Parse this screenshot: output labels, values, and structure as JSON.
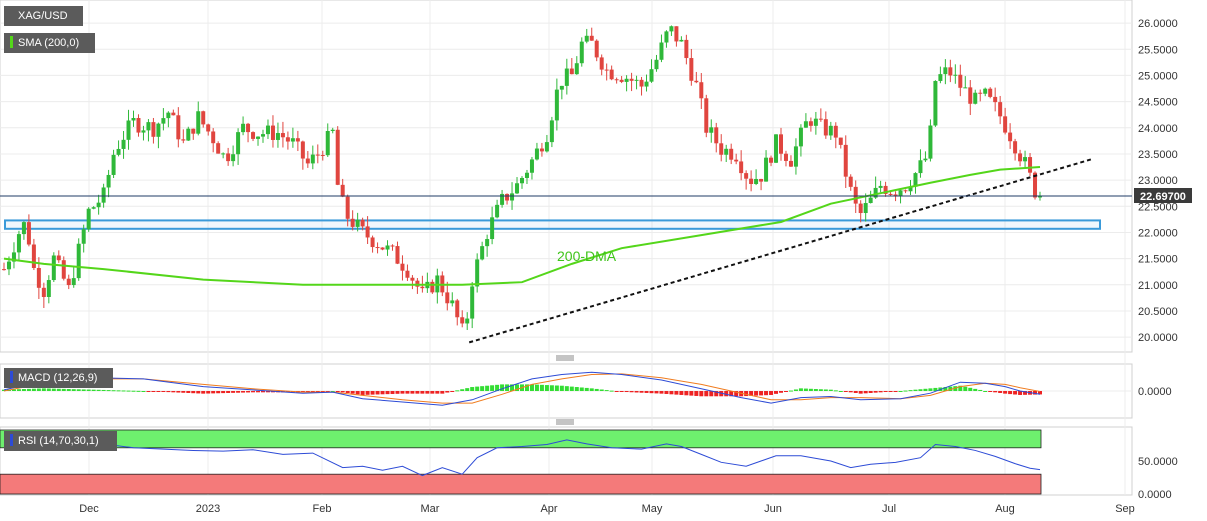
{
  "legend": {
    "symbol": "XAG/USD",
    "sma": "SMA (200,0)",
    "macd": "MACD (12,26,9)",
    "rsi": "RSI (14,70,30,1)"
  },
  "annotation": "200-DMA",
  "price_tag": "22.69700",
  "colors": {
    "up": "#2fb839",
    "down": "#e0453f",
    "sma": "#54d61a",
    "support_zone": "#3a9ad9",
    "macd_line": "#2d4bd6",
    "signal_line": "#f07c1f",
    "hist_pos": "#33dd33",
    "hist_neg": "#ee2222",
    "rsi_line": "#2d4bd6",
    "overbought_fill": "#6ef06e",
    "oversold_fill": "#f47a7a"
  },
  "chart_data": [
    {
      "type": "candlestick",
      "panel": "price",
      "ylim": [
        19.85,
        26.25
      ],
      "y_ticks": [
        "26.0000",
        "25.5000",
        "25.0000",
        "24.5000",
        "24.0000",
        "23.5000",
        "23.0000",
        "22.5000",
        "22.0000",
        "21.5000",
        "21.0000",
        "20.5000",
        "20.0000"
      ],
      "x_ticks": [
        "Dec",
        "2023",
        "Feb",
        "Mar",
        "Apr",
        "May",
        "Jun",
        "Jul",
        "Aug",
        "Sep"
      ],
      "series": [
        {
          "kind": "close_anchors",
          "points": [
            [
              0,
              21.3
            ],
            [
              15,
              22.0
            ],
            [
              22,
              22.2
            ],
            [
              30,
              21.3
            ],
            [
              40,
              20.9
            ],
            [
              50,
              21.5
            ],
            [
              65,
              20.9
            ],
            [
              85,
              22.4
            ],
            [
              100,
              22.7
            ],
            [
              110,
              23.5
            ],
            [
              118,
              23.8
            ],
            [
              130,
              24.1
            ],
            [
              150,
              24.0
            ],
            [
              165,
              24.3
            ],
            [
              180,
              23.7
            ],
            [
              195,
              24.2
            ],
            [
              210,
              23.8
            ],
            [
              222,
              23.4
            ],
            [
              240,
              24.0
            ],
            [
              255,
              23.9
            ],
            [
              275,
              23.9
            ],
            [
              290,
              23.7
            ],
            [
              305,
              23.3
            ],
            [
              315,
              23.5
            ],
            [
              330,
              23.9
            ],
            [
              336,
              22.7
            ],
            [
              345,
              22.3
            ],
            [
              360,
              22.0
            ],
            [
              375,
              21.8
            ],
            [
              390,
              21.6
            ],
            [
              405,
              21.3
            ],
            [
              420,
              20.8
            ],
            [
              435,
              21.1
            ],
            [
              450,
              20.6
            ],
            [
              462,
              20.0
            ],
            [
              470,
              21.1
            ],
            [
              485,
              22.0
            ],
            [
              500,
              22.6
            ],
            [
              515,
              22.9
            ],
            [
              528,
              23.3
            ],
            [
              545,
              23.9
            ],
            [
              558,
              24.9
            ],
            [
              570,
              25.0
            ],
            [
              580,
              25.6
            ],
            [
              590,
              25.6
            ],
            [
              605,
              25.1
            ],
            [
              622,
              25.0
            ],
            [
              640,
              24.8
            ],
            [
              655,
              25.3
            ],
            [
              668,
              25.9
            ],
            [
              680,
              25.6
            ],
            [
              695,
              24.8
            ],
            [
              705,
              24.0
            ],
            [
              720,
              23.6
            ],
            [
              735,
              23.5
            ],
            [
              748,
              23.0
            ],
            [
              760,
              23.1
            ],
            [
              775,
              23.7
            ],
            [
              790,
              23.4
            ],
            [
              808,
              24.2
            ],
            [
              820,
              24.0
            ],
            [
              835,
              23.9
            ],
            [
              848,
              22.9
            ],
            [
              858,
              22.3
            ],
            [
              870,
              22.6
            ],
            [
              880,
              22.9
            ],
            [
              892,
              22.8
            ],
            [
              905,
              22.9
            ],
            [
              918,
              23.2
            ],
            [
              928,
              23.5
            ],
            [
              935,
              24.9
            ],
            [
              948,
              25.1
            ],
            [
              960,
              24.8
            ],
            [
              975,
              24.5
            ],
            [
              985,
              24.6
            ],
            [
              998,
              24.3
            ],
            [
              1012,
              23.8
            ],
            [
              1025,
              23.3
            ],
            [
              1035,
              22.8
            ],
            [
              1040,
              22.69
            ]
          ]
        },
        {
          "name": "SMA (200,0)",
          "kind": "line",
          "points": [
            [
              0,
              21.5
            ],
            [
              40,
              21.4
            ],
            [
              100,
              21.3
            ],
            [
              200,
              21.1
            ],
            [
              300,
              21.0
            ],
            [
              400,
              21.0
            ],
            [
              460,
              21.0
            ],
            [
              520,
              21.05
            ],
            [
              570,
              21.4
            ],
            [
              620,
              21.7
            ],
            [
              700,
              21.95
            ],
            [
              780,
              22.2
            ],
            [
              830,
              22.55
            ],
            [
              880,
              22.75
            ],
            [
              930,
              22.95
            ],
            [
              970,
              23.1
            ],
            [
              1000,
              23.2
            ],
            [
              1040,
              23.25
            ]
          ]
        },
        {
          "name": "trendline",
          "kind": "dashed-line",
          "points": [
            [
              467,
              19.9
            ],
            [
              1092,
              23.4
            ]
          ]
        },
        {
          "name": "support-zone",
          "kind": "band",
          "y_range": [
            22.07,
            22.23
          ]
        }
      ]
    },
    {
      "type": "macd",
      "panel": "macd",
      "ylim": [
        -0.95,
        0.95
      ],
      "y_ticks": [
        "0.0000"
      ],
      "macd": [
        [
          0,
          0.05
        ],
        [
          40,
          0.45
        ],
        [
          90,
          0.6
        ],
        [
          140,
          0.55
        ],
        [
          200,
          0.2
        ],
        [
          250,
          0.05
        ],
        [
          300,
          -0.1
        ],
        [
          330,
          -0.05
        ],
        [
          360,
          -0.35
        ],
        [
          400,
          -0.5
        ],
        [
          440,
          -0.65
        ],
        [
          470,
          -0.4
        ],
        [
          500,
          0.1
        ],
        [
          530,
          0.55
        ],
        [
          560,
          0.75
        ],
        [
          590,
          0.85
        ],
        [
          620,
          0.75
        ],
        [
          660,
          0.5
        ],
        [
          700,
          0.1
        ],
        [
          740,
          -0.3
        ],
        [
          770,
          -0.55
        ],
        [
          800,
          -0.3
        ],
        [
          830,
          -0.25
        ],
        [
          860,
          -0.4
        ],
        [
          900,
          -0.35
        ],
        [
          930,
          -0.1
        ],
        [
          960,
          0.4
        ],
        [
          985,
          0.35
        ],
        [
          1005,
          0.2
        ],
        [
          1020,
          0.0
        ],
        [
          1040,
          -0.15
        ]
      ],
      "signal": [
        [
          0,
          0.0
        ],
        [
          40,
          0.35
        ],
        [
          90,
          0.55
        ],
        [
          140,
          0.55
        ],
        [
          200,
          0.3
        ],
        [
          250,
          0.1
        ],
        [
          300,
          -0.05
        ],
        [
          330,
          -0.05
        ],
        [
          360,
          -0.2
        ],
        [
          400,
          -0.4
        ],
        [
          440,
          -0.55
        ],
        [
          470,
          -0.55
        ],
        [
          500,
          -0.15
        ],
        [
          530,
          0.3
        ],
        [
          560,
          0.55
        ],
        [
          590,
          0.75
        ],
        [
          620,
          0.78
        ],
        [
          660,
          0.6
        ],
        [
          700,
          0.3
        ],
        [
          740,
          -0.1
        ],
        [
          770,
          -0.4
        ],
        [
          800,
          -0.4
        ],
        [
          830,
          -0.3
        ],
        [
          860,
          -0.3
        ],
        [
          900,
          -0.35
        ],
        [
          930,
          -0.2
        ],
        [
          960,
          0.2
        ],
        [
          985,
          0.35
        ],
        [
          1005,
          0.3
        ],
        [
          1020,
          0.15
        ],
        [
          1040,
          -0.02
        ]
      ]
    },
    {
      "type": "rsi",
      "panel": "rsi",
      "ylim": [
        0,
        100
      ],
      "y_ticks": [
        "50.0000",
        "0.0000"
      ],
      "levels": {
        "overbought": 70,
        "oversold": 30
      },
      "rsi": [
        [
          0,
          78
        ],
        [
          20,
          70
        ],
        [
          40,
          72
        ],
        [
          60,
          68
        ],
        [
          80,
          72
        ],
        [
          100,
          76
        ],
        [
          130,
          70
        ],
        [
          160,
          68
        ],
        [
          190,
          66
        ],
        [
          220,
          65
        ],
        [
          250,
          67
        ],
        [
          280,
          60
        ],
        [
          310,
          62
        ],
        [
          340,
          40
        ],
        [
          360,
          42
        ],
        [
          380,
          36
        ],
        [
          400,
          42
        ],
        [
          420,
          28
        ],
        [
          440,
          40
        ],
        [
          460,
          30
        ],
        [
          475,
          55
        ],
        [
          495,
          70
        ],
        [
          520,
          72
        ],
        [
          545,
          75
        ],
        [
          565,
          82
        ],
        [
          585,
          76
        ],
        [
          610,
          70
        ],
        [
          640,
          68
        ],
        [
          665,
          76
        ],
        [
          680,
          72
        ],
        [
          700,
          60
        ],
        [
          720,
          48
        ],
        [
          745,
          42
        ],
        [
          775,
          58
        ],
        [
          800,
          58
        ],
        [
          830,
          50
        ],
        [
          850,
          40
        ],
        [
          870,
          45
        ],
        [
          895,
          48
        ],
        [
          920,
          55
        ],
        [
          935,
          75
        ],
        [
          955,
          72
        ],
        [
          975,
          66
        ],
        [
          995,
          57
        ],
        [
          1015,
          46
        ],
        [
          1030,
          39
        ],
        [
          1040,
          37
        ]
      ]
    }
  ]
}
